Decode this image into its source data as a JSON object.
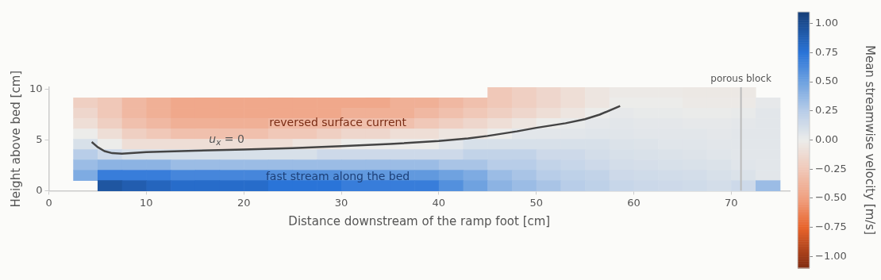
{
  "chart_data": {
    "type": "heatmap",
    "xlabel": "Distance downstream of the ramp foot [cm]",
    "ylabel": "Height above bed [cm]",
    "clabel": "Mean streamwise velocity [m/s]",
    "x": [
      3.75,
      6.25,
      8.75,
      11.25,
      13.75,
      16.25,
      18.75,
      21.25,
      23.75,
      26.25,
      28.75,
      31.25,
      33.75,
      36.25,
      38.75,
      41.25,
      43.75,
      46.25,
      48.75,
      51.25,
      53.75,
      56.25,
      58.75,
      61.25,
      63.75,
      66.25,
      68.75,
      71.25,
      73.75
    ],
    "cells": [
      [
        null,
        null,
        null,
        null,
        null,
        null,
        null,
        null,
        null,
        null,
        null,
        null,
        null,
        null,
        null,
        null,
        null,
        -0.25,
        -0.2,
        -0.15,
        -0.1,
        -0.05,
        -0.02,
        -0.02,
        -0.02,
        -0.03,
        -0.03,
        -0.03,
        null
      ],
      [
        -0.2,
        -0.25,
        -0.35,
        -0.4,
        -0.45,
        -0.45,
        -0.45,
        -0.45,
        -0.45,
        -0.45,
        -0.45,
        -0.45,
        -0.45,
        -0.4,
        -0.4,
        -0.35,
        -0.3,
        -0.25,
        -0.2,
        -0.15,
        -0.1,
        -0.05,
        0,
        0,
        0,
        -0.02,
        -0.02,
        -0.02,
        0.03
      ],
      [
        -0.15,
        -0.25,
        -0.35,
        -0.4,
        -0.45,
        -0.45,
        -0.45,
        -0.45,
        -0.45,
        -0.45,
        -0.45,
        -0.4,
        -0.4,
        -0.4,
        -0.35,
        -0.3,
        -0.25,
        -0.2,
        -0.15,
        -0.1,
        -0.05,
        0,
        0.03,
        0.02,
        0.02,
        0.01,
        0.01,
        0.02,
        0.05
      ],
      [
        -0.1,
        -0.2,
        -0.3,
        -0.35,
        -0.4,
        -0.4,
        -0.4,
        -0.4,
        -0.35,
        -0.35,
        -0.35,
        -0.3,
        -0.3,
        -0.3,
        -0.25,
        -0.2,
        -0.15,
        -0.1,
        -0.05,
        0,
        0.02,
        0.04,
        0.05,
        0.04,
        0.04,
        0.03,
        0.03,
        0.04,
        0.05
      ],
      [
        0,
        -0.1,
        -0.2,
        -0.25,
        -0.3,
        -0.3,
        -0.3,
        -0.3,
        -0.25,
        -0.25,
        -0.2,
        -0.15,
        -0.15,
        -0.1,
        -0.1,
        -0.05,
        -0.05,
        0,
        0.05,
        0.05,
        0.05,
        0.06,
        0.06,
        0.05,
        0.05,
        0.05,
        0.04,
        0.05,
        0.05
      ],
      [
        0.1,
        0,
        -0.1,
        -0.1,
        -0.1,
        -0.1,
        -0.1,
        -0.1,
        -0.1,
        -0.05,
        -0.05,
        0,
        0,
        0,
        0,
        0.05,
        0.1,
        0.1,
        0.1,
        0.1,
        0.1,
        0.1,
        0.08,
        0.07,
        0.06,
        0.06,
        0.05,
        0.05,
        0.05
      ],
      [
        0.25,
        0.15,
        0.1,
        0.1,
        0.1,
        0.1,
        0.1,
        0.1,
        0.1,
        0.1,
        0.15,
        0.15,
        0.15,
        0.15,
        0.15,
        0.15,
        0.2,
        0.2,
        0.2,
        0.15,
        0.15,
        0.12,
        0.1,
        0.09,
        0.08,
        0.07,
        0.06,
        0.05,
        0.05
      ],
      [
        0.35,
        0.4,
        0.4,
        0.4,
        0.35,
        0.35,
        0.35,
        0.35,
        0.35,
        0.35,
        0.35,
        0.35,
        0.35,
        0.35,
        0.35,
        0.3,
        0.3,
        0.25,
        0.25,
        0.2,
        0.18,
        0.15,
        0.12,
        0.11,
        0.1,
        0.09,
        0.08,
        0.06,
        0.05
      ],
      [
        0.45,
        0.7,
        0.7,
        0.7,
        0.65,
        0.65,
        0.65,
        0.65,
        0.6,
        0.6,
        0.6,
        0.55,
        0.55,
        0.55,
        0.55,
        0.5,
        0.45,
        0.35,
        0.3,
        0.25,
        0.22,
        0.2,
        0.15,
        0.14,
        0.13,
        0.12,
        0.1,
        0.08,
        0.05
      ],
      [
        null,
        0.95,
        0.9,
        0.85,
        0.8,
        0.8,
        0.8,
        0.8,
        0.75,
        0.75,
        0.75,
        0.7,
        0.7,
        0.7,
        0.7,
        0.6,
        0.5,
        0.4,
        0.35,
        0.3,
        0.25,
        0.22,
        0.18,
        0.16,
        0.15,
        0.14,
        0.12,
        0.15,
        0.35
      ]
    ],
    "clim": [
      -1.1,
      1.1
    ],
    "cticks": [
      {
        "value": 1,
        "label": "1.00"
      },
      {
        "value": 0.75,
        "label": "0.75"
      },
      {
        "value": 0.5,
        "label": "0.50"
      },
      {
        "value": 0.25,
        "label": "0.25"
      },
      {
        "value": 0,
        "label": "0.00"
      },
      {
        "value": -0.25,
        "label": "−0.25"
      },
      {
        "value": -0.5,
        "label": "−0.50"
      },
      {
        "value": -0.75,
        "label": "−0.75"
      },
      {
        "value": -1,
        "label": "−1.00"
      }
    ],
    "xlim": [
      0,
      76
    ],
    "xticks": [
      0,
      10,
      20,
      30,
      40,
      50,
      60,
      70
    ],
    "ylim": [
      0,
      10.2
    ],
    "yticks": [
      0,
      5,
      10
    ],
    "grid": false,
    "series": [
      {
        "type": "line",
        "color": "#444444",
        "x": [
          4.4,
          5,
          5.7,
          6.5,
          7.5,
          10,
          15,
          20,
          25,
          30,
          35,
          40,
          43,
          45,
          48,
          50,
          53,
          55,
          56.5,
          58.6
        ],
        "values": [
          4.8,
          4.3,
          3.9,
          3.7,
          3.65,
          3.8,
          3.95,
          4.05,
          4.2,
          4.4,
          4.6,
          4.9,
          5.15,
          5.4,
          5.85,
          6.2,
          6.65,
          7.05,
          7.5,
          8.35
        ]
      }
    ],
    "ref_lines": [
      {
        "axis": "x",
        "value": 71,
        "label": "porous block",
        "color": "#bbbbbb"
      }
    ],
    "annotations": [
      "reversed surface current",
      "fast stream along the bed",
      "u$_{x}$ = 0"
    ]
  }
}
